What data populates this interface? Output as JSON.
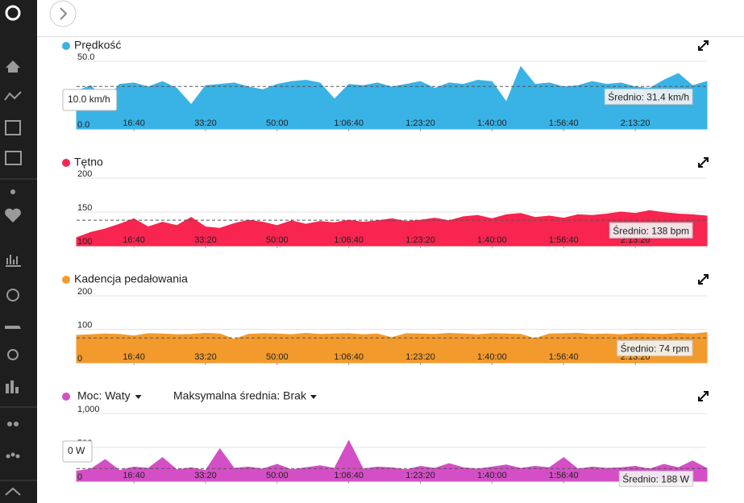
{
  "chart_data": [
    {
      "type": "area",
      "title": "Prędkość",
      "color": "#39b3e6",
      "x": [
        200,
        400,
        600,
        800,
        1000,
        1200,
        1400,
        1600,
        1800,
        2000,
        2200,
        2400,
        2600,
        2800,
        3000,
        3200,
        3400,
        3600,
        3800,
        4000,
        4200,
        4400,
        4600,
        4800,
        5000,
        5200,
        5400,
        5600,
        5800,
        6000,
        6200,
        6400,
        6600,
        6800,
        7000,
        7200,
        7400,
        7600,
        7800,
        8000,
        8200,
        8400,
        8600,
        8800,
        9000
      ],
      "values": [
        28,
        32,
        20,
        33,
        34,
        31,
        35,
        30,
        18,
        32,
        33,
        34,
        31,
        29,
        33,
        35,
        36,
        34,
        22,
        33,
        32,
        34,
        31,
        33,
        35,
        30,
        34,
        33,
        36,
        35,
        20,
        46,
        33,
        34,
        31,
        32,
        35,
        33,
        34,
        31,
        30,
        36,
        41,
        32,
        35
      ],
      "xlim": [
        200,
        9000
      ],
      "xticks": [
        {
          "value": 1000,
          "label": "16:40"
        },
        {
          "value": 2000,
          "label": "33:20"
        },
        {
          "value": 3000,
          "label": "50:00"
        },
        {
          "value": 4000,
          "label": "1:06:40"
        },
        {
          "value": 5000,
          "label": "1:23:20"
        },
        {
          "value": 6000,
          "label": "1:40:00"
        },
        {
          "value": 7000,
          "label": "1:56:40"
        },
        {
          "value": 8000,
          "label": "2:13:20"
        }
      ],
      "ylim": [
        0,
        50
      ],
      "yticks": [
        {
          "value": 0,
          "label": "0.0"
        },
        {
          "value": 50,
          "label": "50.0"
        }
      ],
      "average": 31.4,
      "average_label": "Średnio: 31.4 km/h",
      "tooltip": "10.0 km/h"
    },
    {
      "type": "area",
      "title": "Tętno",
      "color": "#f7254f",
      "x": [
        200,
        400,
        600,
        800,
        1000,
        1200,
        1400,
        1600,
        1800,
        2000,
        2200,
        2400,
        2600,
        2800,
        3000,
        3200,
        3400,
        3600,
        3800,
        4000,
        4200,
        4400,
        4600,
        4800,
        5000,
        5200,
        5400,
        5600,
        5800,
        6000,
        6200,
        6400,
        6600,
        6800,
        7000,
        7200,
        7400,
        7600,
        7800,
        8000,
        8200,
        8400,
        8600,
        8800,
        9000
      ],
      "values": [
        112,
        120,
        125,
        132,
        140,
        128,
        135,
        130,
        142,
        128,
        126,
        133,
        138,
        135,
        130,
        137,
        132,
        136,
        134,
        138,
        135,
        137,
        140,
        136,
        138,
        141,
        137,
        143,
        145,
        140,
        146,
        148,
        142,
        144,
        141,
        146,
        145,
        147,
        150,
        148,
        152,
        149,
        147,
        146,
        144
      ],
      "xlim": [
        200,
        9000
      ],
      "xticks": [
        {
          "value": 1000,
          "label": "16:40"
        },
        {
          "value": 2000,
          "label": "33:20"
        },
        {
          "value": 3000,
          "label": "50:00"
        },
        {
          "value": 4000,
          "label": "1:06:40"
        },
        {
          "value": 5000,
          "label": "1:23:20"
        },
        {
          "value": 6000,
          "label": "1:40:00"
        },
        {
          "value": 7000,
          "label": "1:56:40"
        },
        {
          "value": 8000,
          "label": "2:13:20"
        }
      ],
      "ylim": [
        100,
        200
      ],
      "yticks": [
        100,
        150,
        200
      ],
      "average": 138,
      "average_label": "Średnio: 138 bpm"
    },
    {
      "type": "area",
      "title": "Kadencja pedałowania",
      "color": "#f39a2d",
      "x": [
        200,
        400,
        600,
        800,
        1000,
        1200,
        1400,
        1600,
        1800,
        2000,
        2200,
        2400,
        2600,
        2800,
        3000,
        3200,
        3400,
        3600,
        3800,
        4000,
        4200,
        4400,
        4600,
        4800,
        5000,
        5200,
        5400,
        5600,
        5800,
        6000,
        6200,
        6400,
        6600,
        6800,
        7000,
        7200,
        7400,
        7600,
        7800,
        8000,
        8200,
        8400,
        8600,
        8800,
        9000
      ],
      "values": [
        82,
        84,
        86,
        85,
        80,
        87,
        86,
        84,
        85,
        88,
        86,
        70,
        85,
        87,
        86,
        84,
        88,
        85,
        86,
        87,
        84,
        86,
        75,
        87,
        86,
        85,
        88,
        86,
        84,
        87,
        86,
        85,
        72,
        86,
        87,
        88,
        85,
        86,
        84,
        87,
        86,
        85,
        88,
        86,
        90
      ],
      "xlim": [
        200,
        9000
      ],
      "xticks": [
        {
          "value": 1000,
          "label": "16:40"
        },
        {
          "value": 2000,
          "label": "33:20"
        },
        {
          "value": 3000,
          "label": "50:00"
        },
        {
          "value": 4000,
          "label": "1:06:40"
        },
        {
          "value": 5000,
          "label": "1:23:20"
        },
        {
          "value": 6000,
          "label": "1:40:00"
        },
        {
          "value": 7000,
          "label": "1:56:40"
        },
        {
          "value": 8000,
          "label": "2:13:20"
        }
      ],
      "ylim": [
        0,
        200
      ],
      "yticks": [
        0,
        100,
        200
      ],
      "average": 74,
      "average_label": "Średnio: 74 rpm"
    },
    {
      "type": "area",
      "title": "Moc: Waty",
      "control_label": "Maksymalna średnia: Brak",
      "color": "#d44fc6",
      "x": [
        200,
        400,
        600,
        800,
        1000,
        1200,
        1400,
        1600,
        1800,
        2000,
        2200,
        2400,
        2600,
        2800,
        3000,
        3200,
        3400,
        3600,
        3800,
        4000,
        4200,
        4400,
        4600,
        4800,
        5000,
        5200,
        5400,
        5600,
        5800,
        6000,
        6200,
        6400,
        6600,
        6800,
        7000,
        7200,
        7400,
        7600,
        7800,
        8000,
        8200,
        8400,
        8600,
        8800,
        9000
      ],
      "values": [
        150,
        180,
        320,
        160,
        210,
        190,
        350,
        170,
        200,
        160,
        480,
        190,
        210,
        180,
        250,
        170,
        200,
        230,
        190,
        600,
        180,
        210,
        200,
        170,
        220,
        190,
        260,
        200,
        180,
        210,
        240,
        190,
        220,
        200,
        350,
        180,
        210,
        190,
        200,
        220,
        180,
        250,
        200,
        300,
        190
      ],
      "xlim": [
        200,
        9000
      ],
      "xticks": [
        {
          "value": 1000,
          "label": "16:40"
        },
        {
          "value": 2000,
          "label": "33:20"
        },
        {
          "value": 3000,
          "label": "50:00"
        },
        {
          "value": 4000,
          "label": "1:06:40"
        },
        {
          "value": 5000,
          "label": "1:23:20"
        },
        {
          "value": 6000,
          "label": "1:40:00"
        },
        {
          "value": 7000,
          "label": "1:56:40"
        },
        {
          "value": 8000,
          "label": "2:13:20"
        }
      ],
      "ylim": [
        0,
        1000
      ],
      "yticks": [
        0,
        500,
        {
          "value": 1000,
          "label": "1,000"
        }
      ],
      "average": 188,
      "average_label": "Średnio: 188 W",
      "tooltip": "0 W"
    }
  ]
}
